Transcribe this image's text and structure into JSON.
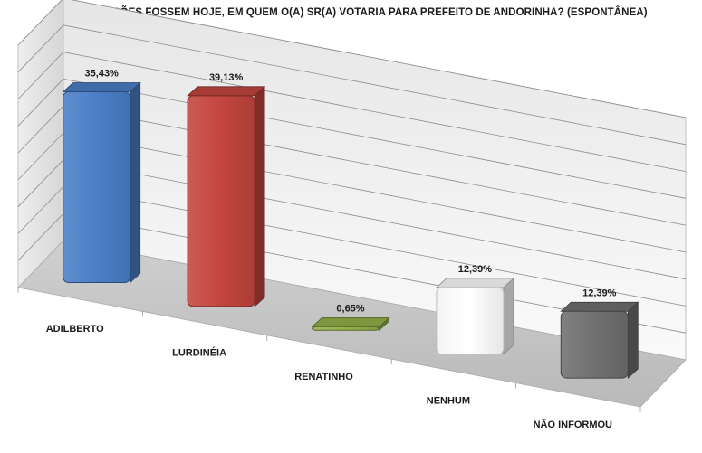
{
  "chart_data": {
    "type": "bar",
    "title": "SE AS ELEIÇÕES FOSSEM HOJE, EM QUEM O(A) SR(A) VOTARIA PARA PREFEITO DE ANDORINHA? (ESPONTÂNEA)",
    "categories": [
      "ADILBERTO",
      "LURDINÉIA",
      "RENATINHO",
      "NENHUM",
      "NÃO INFORMOU"
    ],
    "values": [
      35.43,
      39.13,
      0.65,
      12.39,
      12.39
    ],
    "value_labels": [
      "35,43%",
      "39,13%",
      "0,65%",
      "12,39%",
      "12,39%"
    ],
    "ylim": [
      0,
      45
    ],
    "grid": true,
    "style": "3d",
    "bar_colors": [
      "#4a7fc7",
      "#c4453f",
      "#93b24a",
      "#ffffff",
      "#707070"
    ]
  }
}
